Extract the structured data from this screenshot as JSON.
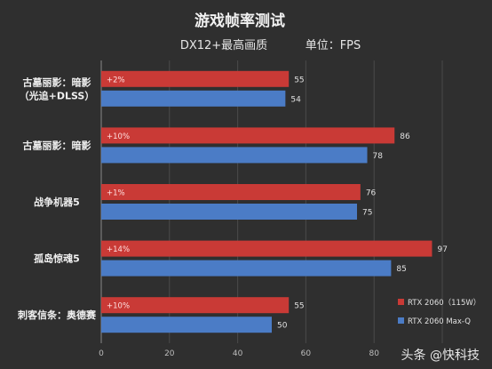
{
  "chart_data": {
    "type": "bar",
    "title": "游戏帧率测试",
    "subtitle": "DX12+最高画质",
    "unit_label": "单位：FPS",
    "categories": [
      [
        "古墓丽影：暗影",
        "（光追+DLSS）"
      ],
      [
        "古墓丽影：暗影"
      ],
      [
        "战争机器5"
      ],
      [
        "孤岛惊魂5"
      ],
      [
        "刺客信条：奥德赛"
      ]
    ],
    "series": [
      {
        "name": "RTX 2060（115W）",
        "color": "#c93a36",
        "values": [
          55,
          86,
          76,
          97,
          55
        ]
      },
      {
        "name": "RTX 2060 Max-Q",
        "color": "#4b7cc6",
        "values": [
          54,
          78,
          75,
          85,
          50
        ]
      }
    ],
    "bar_annotations": [
      "+2%",
      "+10%",
      "+1%",
      "+14%",
      "+10%"
    ],
    "x_ticks": [
      0,
      20,
      40,
      60,
      80
    ],
    "xlim": [
      0,
      100
    ],
    "grid": true,
    "legend_position": "bottom-right"
  },
  "watermark": "头条 @快科技"
}
